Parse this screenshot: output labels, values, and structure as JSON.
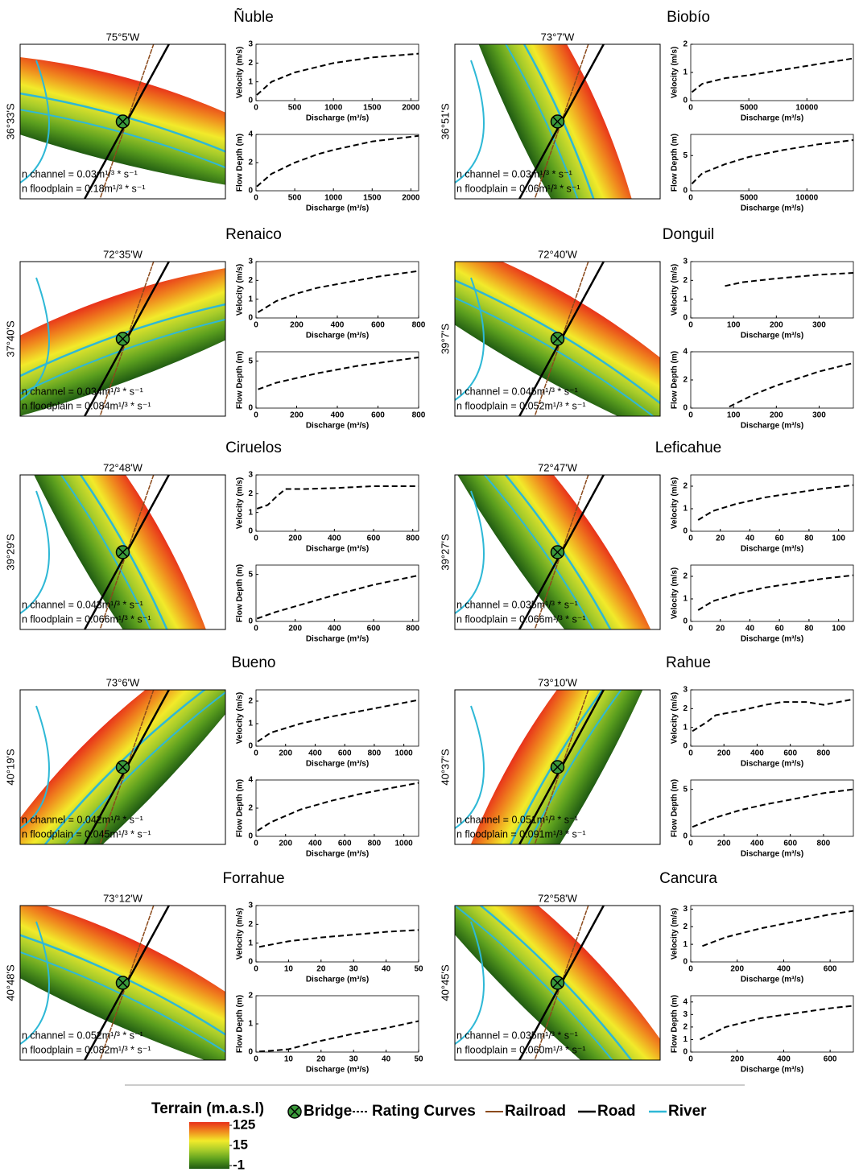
{
  "chart_data": [
    {
      "type": "line",
      "x_label": "Discharge (m³/s)",
      "y_label": "Velocity (m/s)",
      "x": [
        10,
        200,
        500,
        800,
        1000,
        1500,
        2100
      ],
      "series": [
        {
          "values": [
            0.3,
            1.0,
            1.5,
            1.8,
            2.0,
            2.3,
            2.5
          ]
        }
      ],
      "color": "#000000",
      "line_style": "dashed",
      "xlim": [
        0,
        2100
      ],
      "xticks": [
        0,
        500,
        1000,
        1500,
        2000
      ],
      "ylim": [
        0,
        3
      ],
      "yticks": [
        0,
        1,
        2,
        3
      ]
    },
    {
      "type": "line",
      "x_label": "Discharge (m³/s)",
      "y_label": "Flow Depth (m)",
      "x": [
        10,
        200,
        500,
        800,
        1000,
        1500,
        2100
      ],
      "series": [
        {
          "values": [
            0.3,
            1.2,
            2.0,
            2.6,
            2.9,
            3.5,
            3.9
          ]
        }
      ],
      "color": "#000000",
      "line_style": "dashed",
      "xlim": [
        0,
        2100
      ],
      "xticks": [
        0,
        500,
        1000,
        1500,
        2000
      ],
      "ylim": [
        0,
        4
      ],
      "yticks": [
        0,
        2,
        4
      ]
    },
    {
      "type": "line",
      "x_label": "Discharge (m³/s)",
      "y_label": "Velocity (m/s)",
      "x": [
        100,
        1000,
        3000,
        5000,
        8000,
        11000,
        14000
      ],
      "series": [
        {
          "values": [
            0.3,
            0.6,
            0.8,
            0.9,
            1.1,
            1.3,
            1.5
          ]
        }
      ],
      "color": "#000000",
      "line_style": "dashed",
      "xlim": [
        0,
        14000
      ],
      "xticks": [
        0,
        5000,
        10000
      ],
      "ylim": [
        0,
        2
      ],
      "yticks": [
        0,
        1,
        2
      ]
    },
    {
      "type": "line",
      "x_label": "Discharge (m³/s)",
      "y_label": "Flow Depth (m)",
      "x": [
        100,
        1000,
        3000,
        5000,
        8000,
        11000,
        14000
      ],
      "series": [
        {
          "values": [
            1.0,
            2.5,
            3.8,
            4.8,
            5.8,
            6.6,
            7.2
          ]
        }
      ],
      "color": "#000000",
      "line_style": "dashed",
      "xlim": [
        0,
        14000
      ],
      "xticks": [
        0,
        5000,
        10000
      ],
      "ylim": [
        0,
        8
      ],
      "yticks": [
        0,
        5
      ]
    },
    {
      "type": "line",
      "x_label": "Discharge (m³/s)",
      "y_label": "Velocity (m/s)",
      "x": [
        10,
        100,
        200,
        300,
        400,
        500,
        600,
        700,
        800
      ],
      "series": [
        {
          "values": [
            0.3,
            0.9,
            1.3,
            1.6,
            1.8,
            2.0,
            2.2,
            2.35,
            2.5
          ]
        }
      ],
      "color": "#000000",
      "line_style": "dashed",
      "xlim": [
        0,
        800
      ],
      "xticks": [
        0,
        200,
        400,
        600,
        800
      ],
      "ylim": [
        0,
        3
      ],
      "yticks": [
        0,
        1,
        2,
        3
      ]
    },
    {
      "type": "line",
      "x_label": "Discharge (m³/s)",
      "y_label": "Flow Depth (m)",
      "x": [
        10,
        100,
        200,
        300,
        400,
        500,
        600,
        700,
        800
      ],
      "series": [
        {
          "values": [
            2.0,
            2.7,
            3.2,
            3.7,
            4.1,
            4.5,
            4.8,
            5.1,
            5.4
          ]
        }
      ],
      "color": "#000000",
      "line_style": "dashed",
      "xlim": [
        0,
        800
      ],
      "xticks": [
        0,
        200,
        400,
        600,
        800
      ],
      "ylim": [
        0,
        6
      ],
      "yticks": [
        0,
        5
      ]
    },
    {
      "type": "line",
      "x_label": "Discharge (m³/s)",
      "y_label": "Velocity (m/s)",
      "x": [
        80,
        120,
        160,
        200,
        250,
        300,
        380
      ],
      "series": [
        {
          "values": [
            1.7,
            1.9,
            2.0,
            2.1,
            2.2,
            2.3,
            2.4
          ]
        }
      ],
      "color": "#000000",
      "line_style": "dashed",
      "xlim": [
        0,
        380
      ],
      "xticks": [
        0,
        100,
        200,
        300
      ],
      "ylim": [
        0,
        3
      ],
      "yticks": [
        0,
        1,
        2,
        3
      ]
    },
    {
      "type": "line",
      "x_label": "Discharge (m³/s)",
      "y_label": "Flow Depth (m)",
      "x": [
        90,
        150,
        200,
        250,
        300,
        380
      ],
      "series": [
        {
          "values": [
            0.1,
            1.0,
            1.6,
            2.1,
            2.6,
            3.2
          ]
        }
      ],
      "color": "#000000",
      "line_style": "dashed",
      "xlim": [
        0,
        380
      ],
      "xticks": [
        0,
        100,
        200,
        300
      ],
      "ylim": [
        0,
        4
      ],
      "yticks": [
        0,
        2,
        4
      ]
    },
    {
      "type": "line",
      "x_label": "Discharge (m³/s)",
      "y_label": "Velocity (m/s)",
      "x": [
        5,
        60,
        100,
        150,
        250,
        400,
        600,
        830
      ],
      "series": [
        {
          "values": [
            1.2,
            1.4,
            1.8,
            2.25,
            2.25,
            2.3,
            2.4,
            2.4
          ]
        }
      ],
      "color": "#000000",
      "line_style": "dashed",
      "xlim": [
        0,
        830
      ],
      "xticks": [
        0,
        200,
        400,
        600,
        800
      ],
      "ylim": [
        0,
        3
      ],
      "yticks": [
        0,
        1,
        2,
        3
      ]
    },
    {
      "type": "line",
      "x_label": "Discharge (m³/s)",
      "y_label": "Flow Depth (m)",
      "x": [
        5,
        100,
        200,
        400,
        600,
        830
      ],
      "series": [
        {
          "values": [
            0.3,
            1.0,
            1.6,
            2.8,
            3.9,
            4.9
          ]
        }
      ],
      "color": "#000000",
      "line_style": "dashed",
      "xlim": [
        0,
        830
      ],
      "xticks": [
        0,
        200,
        400,
        600,
        800
      ],
      "ylim": [
        0,
        6
      ],
      "yticks": [
        0,
        5
      ]
    },
    {
      "type": "line",
      "x_label": "Discharge (m³/s)",
      "y_label": "Velocity (m/s)",
      "x": [
        5,
        15,
        30,
        50,
        70,
        90,
        110
      ],
      "series": [
        {
          "values": [
            0.5,
            0.9,
            1.2,
            1.5,
            1.7,
            1.9,
            2.05
          ]
        }
      ],
      "color": "#000000",
      "line_style": "dashed",
      "xlim": [
        0,
        110
      ],
      "xticks": [
        0,
        20,
        40,
        60,
        80,
        100
      ],
      "ylim": [
        0,
        2.5
      ],
      "yticks": [
        0,
        1,
        2
      ]
    },
    {
      "type": "line",
      "x_label": "Discharge (m³/s)",
      "y_label": "Velocity (m/s)",
      "x": [
        5,
        15,
        30,
        50,
        70,
        90,
        110
      ],
      "series": [
        {
          "values": [
            0.5,
            0.9,
            1.2,
            1.5,
            1.7,
            1.9,
            2.05
          ]
        }
      ],
      "color": "#000000",
      "line_style": "dashed",
      "xlim": [
        0,
        110
      ],
      "xticks": [
        0,
        20,
        40,
        60,
        80,
        100
      ],
      "ylim": [
        0,
        2.5
      ],
      "yticks": [
        0,
        1,
        2
      ]
    },
    {
      "type": "line",
      "x_label": "Discharge (m³/s)",
      "y_label": "Velocity (m/s)",
      "x": [
        10,
        100,
        300,
        500,
        700,
        900,
        1100
      ],
      "series": [
        {
          "values": [
            0.2,
            0.6,
            1.0,
            1.3,
            1.55,
            1.8,
            2.05
          ]
        }
      ],
      "color": "#000000",
      "line_style": "dashed",
      "xlim": [
        0,
        1100
      ],
      "xticks": [
        0,
        200,
        400,
        600,
        800,
        1000
      ],
      "ylim": [
        0,
        2.5
      ],
      "yticks": [
        0,
        1,
        2
      ]
    },
    {
      "type": "line",
      "x_label": "Discharge (m³/s)",
      "y_label": "Flow Depth (m)",
      "x": [
        10,
        100,
        300,
        500,
        700,
        900,
        1100
      ],
      "series": [
        {
          "values": [
            0.4,
            1.0,
            1.9,
            2.5,
            3.0,
            3.4,
            3.8
          ]
        }
      ],
      "color": "#000000",
      "line_style": "dashed",
      "xlim": [
        0,
        1100
      ],
      "xticks": [
        0,
        200,
        400,
        600,
        800,
        1000
      ],
      "ylim": [
        0,
        4
      ],
      "yticks": [
        0,
        2,
        4
      ]
    },
    {
      "type": "line",
      "x_label": "Discharge (m³/s)",
      "y_label": "Velocity (m/s)",
      "x": [
        10,
        100,
        150,
        300,
        450,
        550,
        700,
        800,
        980
      ],
      "series": [
        {
          "values": [
            0.8,
            1.3,
            1.65,
            1.9,
            2.2,
            2.35,
            2.35,
            2.2,
            2.5
          ]
        }
      ],
      "color": "#000000",
      "line_style": "dashed",
      "xlim": [
        0,
        980
      ],
      "xticks": [
        0,
        200,
        400,
        600,
        800
      ],
      "ylim": [
        0,
        3
      ],
      "yticks": [
        0,
        1,
        2,
        3
      ]
    },
    {
      "type": "line",
      "x_label": "Discharge (m³/s)",
      "y_label": "Flow Depth (m)",
      "x": [
        10,
        150,
        300,
        450,
        600,
        800,
        980
      ],
      "series": [
        {
          "values": [
            1.0,
            2.0,
            2.8,
            3.4,
            3.9,
            4.6,
            5.0
          ]
        }
      ],
      "color": "#000000",
      "line_style": "dashed",
      "xlim": [
        0,
        980
      ],
      "xticks": [
        0,
        200,
        400,
        600,
        800
      ],
      "ylim": [
        0,
        6
      ],
      "yticks": [
        0,
        5
      ]
    },
    {
      "type": "line",
      "x_label": "Discharge (m³/s)",
      "y_label": "Velocity (m/s)",
      "x": [
        1,
        10,
        20,
        30,
        40,
        50
      ],
      "series": [
        {
          "values": [
            0.8,
            1.1,
            1.3,
            1.45,
            1.6,
            1.7
          ]
        }
      ],
      "color": "#000000",
      "line_style": "dashed",
      "xlim": [
        0,
        50
      ],
      "xticks": [
        0,
        10,
        20,
        30,
        40,
        50
      ],
      "ylim": [
        0,
        3
      ],
      "yticks": [
        0,
        1,
        2,
        3
      ]
    },
    {
      "type": "line",
      "x_label": "Discharge (m³/s)",
      "y_label": "Flow Depth (m)",
      "x": [
        1,
        5,
        10,
        20,
        30,
        40,
        50
      ],
      "series": [
        {
          "values": [
            0.02,
            0.05,
            0.1,
            0.4,
            0.65,
            0.85,
            1.1
          ]
        }
      ],
      "color": "#000000",
      "line_style": "dashed",
      "xlim": [
        0,
        50
      ],
      "xticks": [
        0,
        10,
        20,
        30,
        40,
        50
      ],
      "ylim": [
        0,
        2
      ],
      "yticks": [
        0,
        1,
        2
      ]
    },
    {
      "type": "line",
      "x_label": "Discharge (m³/s)",
      "y_label": "Velocity (m/s)",
      "x": [
        50,
        150,
        300,
        450,
        600,
        700
      ],
      "series": [
        {
          "values": [
            0.9,
            1.4,
            1.9,
            2.3,
            2.7,
            2.9
          ]
        }
      ],
      "color": "#000000",
      "line_style": "dashed",
      "xlim": [
        0,
        700
      ],
      "xticks": [
        0,
        200,
        400,
        600
      ],
      "ylim": [
        0,
        3.2
      ],
      "yticks": [
        0,
        1,
        2,
        3
      ]
    },
    {
      "type": "line",
      "x_label": "Discharge (m³/s)",
      "y_label": "Flow Depth (m)",
      "x": [
        40,
        150,
        300,
        450,
        600,
        700
      ],
      "series": [
        {
          "values": [
            1.0,
            2.0,
            2.7,
            3.1,
            3.5,
            3.7
          ]
        }
      ],
      "color": "#000000",
      "line_style": "dashed",
      "xlim": [
        0,
        700
      ],
      "xticks": [
        0,
        200,
        400,
        600
      ],
      "ylim": [
        0,
        4.5
      ],
      "yticks": [
        0,
        1,
        2,
        3,
        4
      ]
    }
  ],
  "maps": [
    {
      "title": "Ñuble",
      "longitude": "75°5'W",
      "latitude": "36°33'S",
      "n_channel": "n channel = 0.03m¹/³ * s⁻¹",
      "n_floodplain": "n floodplain = 0.18m¹/³ * s⁻¹"
    },
    {
      "title": "Biobío",
      "longitude": "73°7'W",
      "latitude": "36°51'S",
      "n_channel": "n channel = 0.03m¹/³ * s⁻¹",
      "n_floodplain": "n floodplain = 0.06m¹/³ * s⁻¹"
    },
    {
      "title": "Renaico",
      "longitude": "72°35'W",
      "latitude": "37°40'S",
      "n_channel": "n channel = 0.034m¹/³ * s⁻¹",
      "n_floodplain": "n floodplain = 0.084m¹/³ * s⁻¹"
    },
    {
      "title": "Donguil",
      "longitude": "72°40'W",
      "latitude": "39°7'S",
      "n_channel": "n channel = 0.045m¹/³ * s⁻¹",
      "n_floodplain": "n floodplain = 0.052m¹/³ * s⁻¹"
    },
    {
      "title": "Ciruelos",
      "longitude": "72°48'W",
      "latitude": "39°29'S",
      "n_channel": "n channel = 0.043m¹/³ * s⁻¹",
      "n_floodplain": "n floodplain = 0.066m¹/³ * s⁻¹"
    },
    {
      "title": "Leficahue",
      "longitude": "72°47'W",
      "latitude": "39°27'S",
      "n_channel": "n channel = 0.035m¹/³ * s⁻¹",
      "n_floodplain": "n floodplain = 0.066m¹/³ * s⁻¹"
    },
    {
      "title": "Bueno",
      "longitude": "73°6'W",
      "latitude": "40°19'S",
      "n_channel": "n channel = 0.042m¹/³ * s⁻¹",
      "n_floodplain": "n floodplain = 0.045m¹/³ * s⁻¹"
    },
    {
      "title": "Rahue",
      "longitude": "73°10'W",
      "latitude": "40°37'S",
      "n_channel": "n channel = 0.051m¹/³ * s⁻¹",
      "n_floodplain": "n floodplain = 0.091m¹/³ * s⁻¹"
    },
    {
      "title": "Forrahue",
      "longitude": "73°12'W",
      "latitude": "40°48'S",
      "n_channel": "n channel = 0.052m¹/³ * s⁻¹",
      "n_floodplain": "n floodplain = 0.082m¹/³ * s⁻¹"
    },
    {
      "title": "Cancura",
      "longitude": "72°58'W",
      "latitude": "40°45'S",
      "n_channel": "n channel = 0.035m¹/³ * s⁻¹",
      "n_floodplain": "n floodplain = 0.060m¹/³ * s⁻¹"
    }
  ],
  "legend": {
    "title": "Terrain (m.a.s.l)",
    "colorbar_ticks": [
      125,
      15,
      -1
    ],
    "items": [
      "Bridge",
      "Rating Curves",
      "Railroad",
      "Road",
      "River"
    ]
  }
}
